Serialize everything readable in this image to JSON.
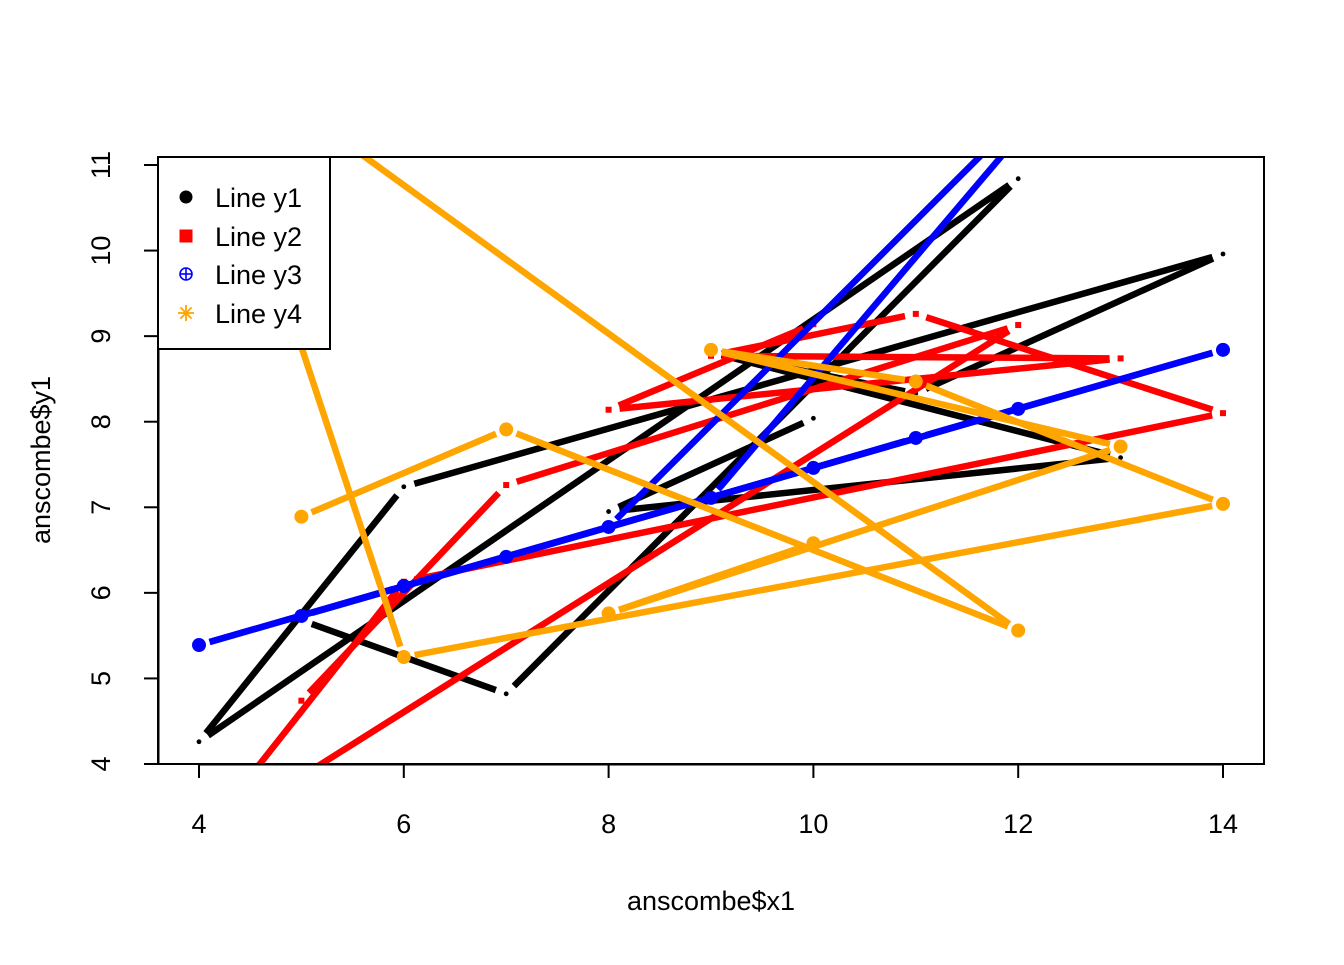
{
  "chart_data": {
    "type": "line",
    "xlabel": "anscombe$x1",
    "ylabel": "anscombe$y1",
    "xlim": [
      4,
      14
    ],
    "ylim": [
      4,
      11
    ],
    "x_ticks": [
      "4",
      "6",
      "8",
      "10",
      "12",
      "14"
    ],
    "y_ticks": [
      "4",
      "5",
      "6",
      "7",
      "8",
      "9",
      "10",
      "11"
    ],
    "x": [
      10,
      8,
      13,
      9,
      11,
      14,
      6,
      4,
      12,
      7,
      5
    ],
    "legend_position": "top-left",
    "legend": [
      "Line y1",
      "Line y2",
      "Line y3",
      "Line y4"
    ],
    "series": [
      {
        "name": "Line y1",
        "color": "#000000",
        "marker": "filled-circle",
        "values": [
          8.04,
          6.95,
          7.58,
          8.81,
          8.33,
          9.96,
          7.24,
          4.26,
          10.84,
          4.82,
          5.68
        ]
      },
      {
        "name": "Line y2",
        "color": "#FF0000",
        "marker": "filled-square",
        "values": [
          9.14,
          8.14,
          8.74,
          8.77,
          9.26,
          8.1,
          6.13,
          3.1,
          9.13,
          7.26,
          4.74
        ]
      },
      {
        "name": "Line y3",
        "color": "#0000FF",
        "marker": "circle-plus",
        "values": [
          7.46,
          6.77,
          12.74,
          7.11,
          7.81,
          8.84,
          6.08,
          5.39,
          8.15,
          6.42,
          5.73
        ]
      },
      {
        "name": "Line y4",
        "color": "#FFA500",
        "marker": "asterisk",
        "values": [
          6.58,
          5.76,
          7.71,
          8.84,
          8.47,
          7.04,
          5.25,
          12.5,
          5.56,
          7.91,
          6.89
        ]
      }
    ],
    "grid": false
  }
}
